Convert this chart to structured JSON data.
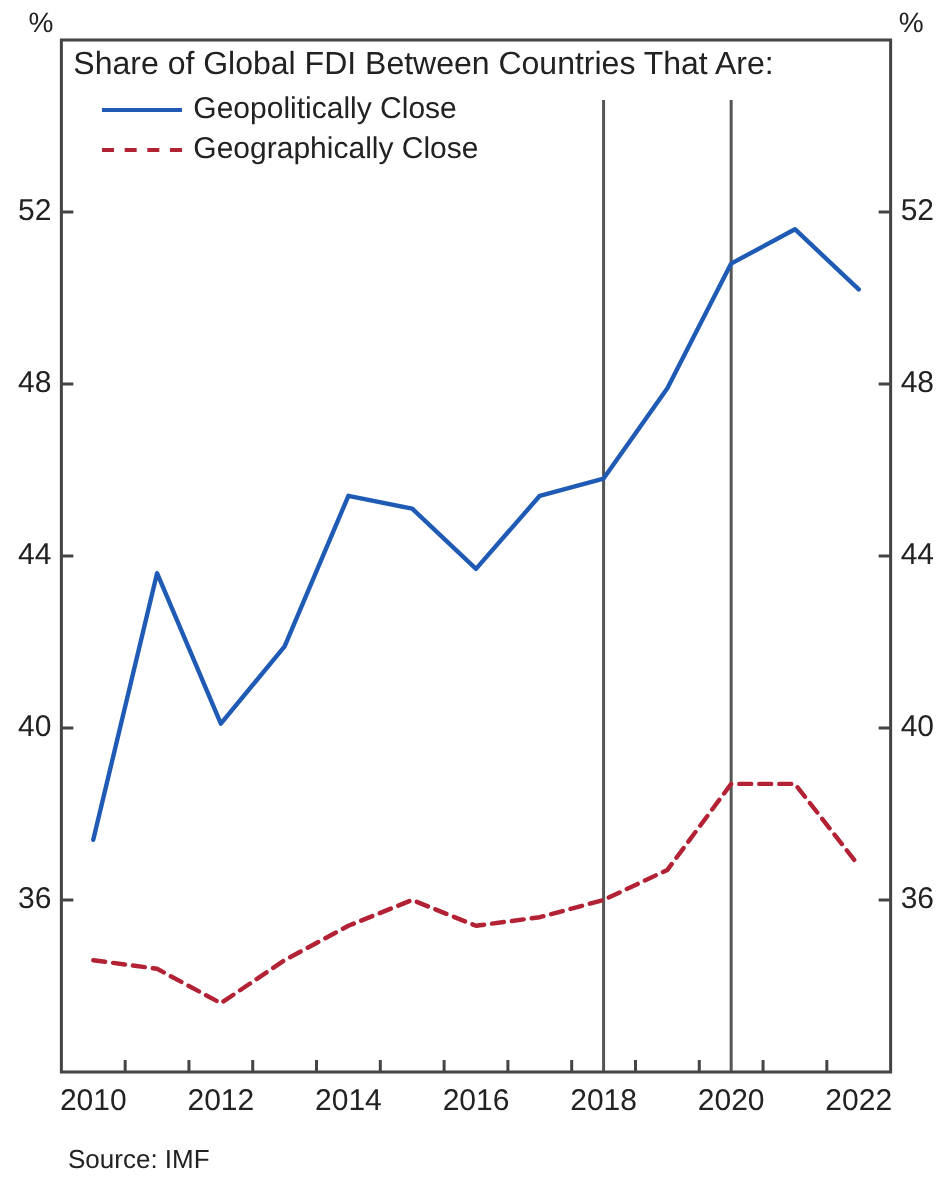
{
  "chart_data": {
    "type": "line",
    "ylabel": "%",
    "y2label": "%",
    "legend_title": "Share of Global FDI Between Countries That Are:",
    "legend": "top left",
    "grid": false,
    "marker": "none",
    "x": [
      2010,
      2011,
      2012,
      2013,
      2014,
      2015,
      2016,
      2017,
      2018,
      2019,
      2020,
      2021,
      2022
    ],
    "xlim": [
      2009.5,
      2022.5
    ],
    "xticks": [
      2010,
      {
        "value": 2010.5,
        "label": null
      },
      {
        "value": 2011.5,
        "label": null
      },
      2012,
      {
        "value": 2012.5,
        "label": null
      },
      {
        "value": 2013.5,
        "label": null
      },
      2014,
      {
        "value": 2014.5,
        "label": null
      },
      {
        "value": 2015.5,
        "label": null
      },
      2016,
      {
        "value": 2016.5,
        "label": null
      },
      {
        "value": 2017.5,
        "label": null
      },
      2018,
      {
        "value": 2018.5,
        "label": null
      },
      {
        "value": 2019.5,
        "label": null
      },
      2020,
      {
        "value": 2020.5,
        "label": null
      },
      {
        "value": 2021.5,
        "label": null
      },
      2022
    ],
    "ylim": [
      32,
      56
    ],
    "yticks": [
      36,
      40,
      44,
      48,
      52
    ],
    "y2lim": [
      32,
      56
    ],
    "y2ticks": [
      36,
      40,
      44,
      48,
      52
    ],
    "series": [
      {
        "name": "Geopolitically Close",
        "color": "#1f5bb5",
        "line_style": "solid",
        "values": [
          37.4,
          43.6,
          40.1,
          41.9,
          45.4,
          45.1,
          43.7,
          45.4,
          45.8,
          47.9,
          50.8,
          51.6,
          50.2
        ]
      },
      {
        "name": "Geographically Close",
        "color": "#b22234",
        "line_style": "dashed",
        "values": [
          34.6,
          34.4,
          33.6,
          34.6,
          35.4,
          36.0,
          35.4,
          35.6,
          36.0,
          36.7,
          38.7,
          38.7,
          36.8
        ]
      }
    ],
    "ref_lines": [
      {
        "axis": "x",
        "value": 2018,
        "color": "#555555"
      },
      {
        "axis": "x",
        "value": 2020,
        "color": "#555555"
      }
    ],
    "annotations": [
      "Source: IMF"
    ]
  }
}
